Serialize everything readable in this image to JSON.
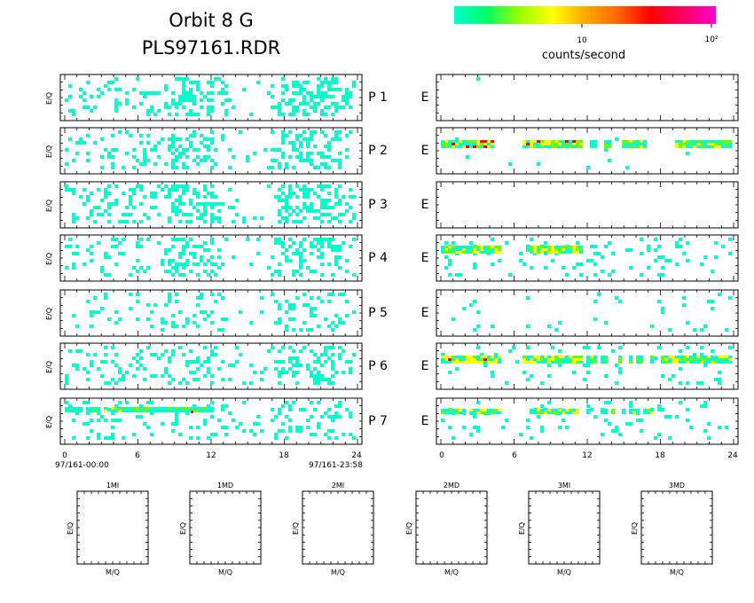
{
  "header": {
    "title_line1": "Orbit 8 G",
    "title_line2": "PLS97161.RDR"
  },
  "colorbar": {
    "label": "counts/second",
    "tick_10": "10",
    "tick_100": "10²",
    "colors": [
      "#00ffcc",
      "#00ff66",
      "#99ff00",
      "#ffff00",
      "#ffaa00",
      "#ff6600",
      "#ff0000",
      "#ff0066",
      "#ff00cc"
    ]
  },
  "chart_data": [
    {
      "type": "heatmap",
      "group": "left-P",
      "rows": [
        "P 1",
        "P 2",
        "P 3",
        "P 4",
        "P 5",
        "P 6",
        "P 7"
      ],
      "ylabel": "E/Q",
      "xlim": [
        0,
        24
      ],
      "xticks": [
        "0",
        "6",
        "12",
        "18",
        "24"
      ],
      "time_start": "97/161-00:00",
      "time_end": "97/161-23:58"
    },
    {
      "type": "heatmap",
      "group": "right-E",
      "rows": [
        "E",
        "E",
        "E",
        "E",
        "E",
        "E",
        "E"
      ],
      "xlim": [
        0,
        24
      ],
      "xticks": [
        "0",
        "6",
        "12",
        "18",
        "24"
      ]
    },
    {
      "type": "heatmap",
      "group": "mass-panels",
      "titles": [
        "1MI",
        "1MD",
        "2MI",
        "2MD",
        "3MI",
        "3MD"
      ],
      "xlabel": "M/Q",
      "ylabel": "E/Q"
    }
  ],
  "labels": {
    "p_row": [
      "P 1",
      "P 2",
      "P 3",
      "P 4",
      "P 5",
      "P 6",
      "P 7"
    ],
    "e_row": [
      "E",
      "E",
      "E",
      "E",
      "E",
      "E",
      "E"
    ]
  }
}
